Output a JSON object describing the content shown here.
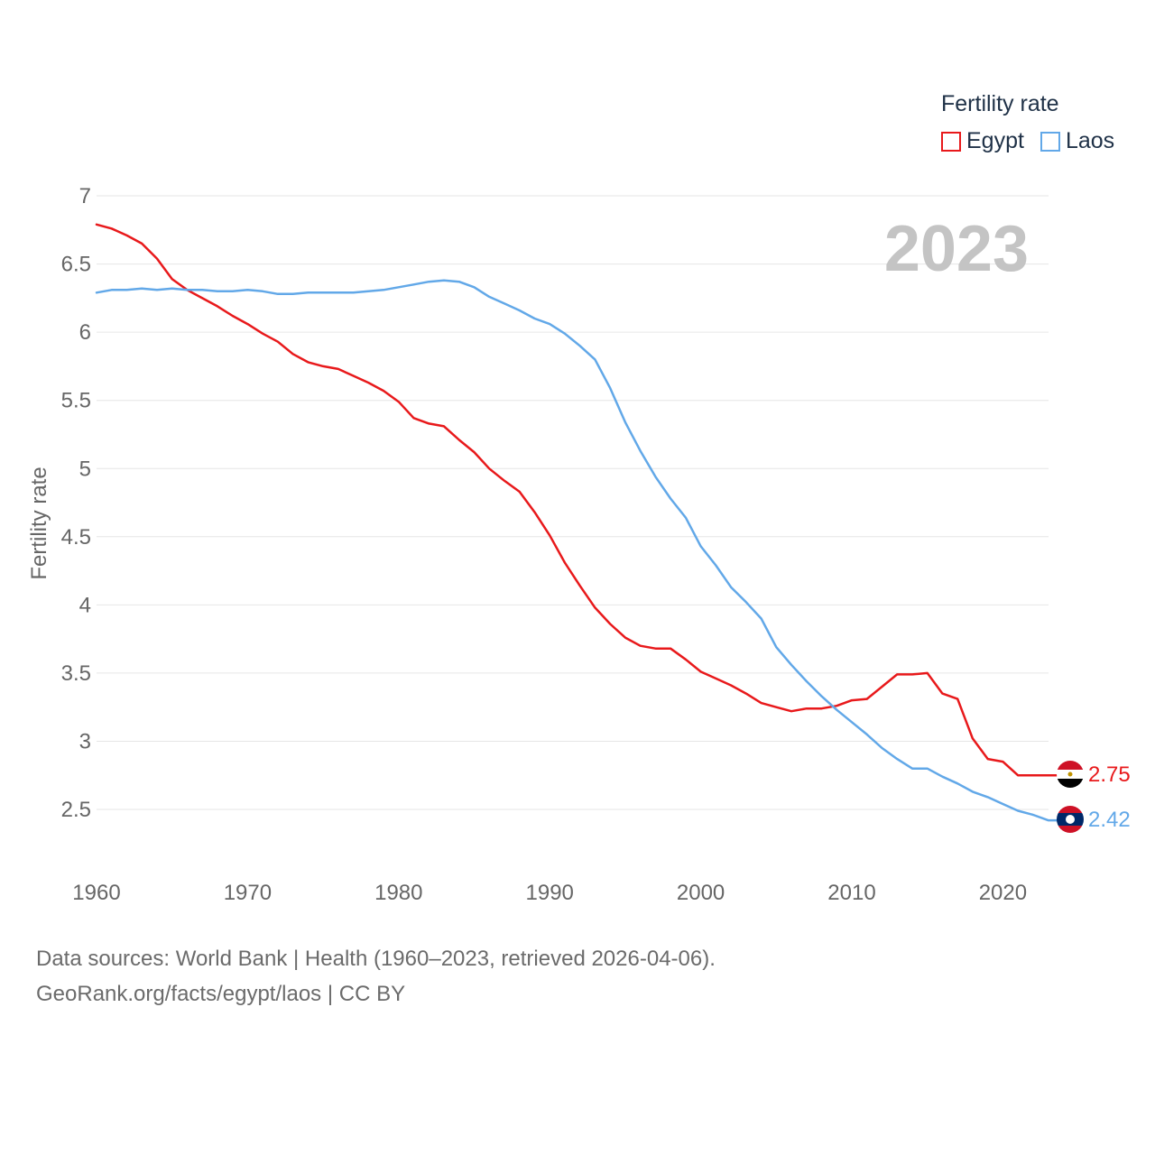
{
  "legend": {
    "title": "Fertility rate",
    "items": [
      {
        "name": "Egypt",
        "color": "#e8191b"
      },
      {
        "name": "Laos",
        "color": "#62a8e8"
      }
    ]
  },
  "source": {
    "line1": "Data sources: World Bank | Health (1960–2023, retrieved 2026-04-06).",
    "line2": "GeoRank.org/facts/egypt/laos | CC BY"
  },
  "chart_data": {
    "type": "line",
    "title": "",
    "year_label": "2023",
    "xlabel": "",
    "ylabel": "Fertility rate",
    "xlim": [
      1960,
      2023
    ],
    "ylim": [
      2.5,
      7
    ],
    "x_ticks": [
      1960,
      1970,
      1980,
      1990,
      2000,
      2010,
      2020
    ],
    "y_ticks": [
      2.5,
      3,
      3.5,
      4,
      4.5,
      5,
      5.5,
      6,
      6.5,
      7
    ],
    "y_tick_labels": [
      "2.5",
      "3",
      "3.5",
      "4",
      "4.5",
      "5",
      "5.5",
      "6",
      "6.5",
      "7"
    ],
    "grid": true,
    "legend_position": "top-right",
    "x": [
      1960,
      1961,
      1962,
      1963,
      1964,
      1965,
      1966,
      1967,
      1968,
      1969,
      1970,
      1971,
      1972,
      1973,
      1974,
      1975,
      1976,
      1977,
      1978,
      1979,
      1980,
      1981,
      1982,
      1983,
      1984,
      1985,
      1986,
      1987,
      1988,
      1989,
      1990,
      1991,
      1992,
      1993,
      1994,
      1995,
      1996,
      1997,
      1998,
      1999,
      2000,
      2001,
      2002,
      2003,
      2004,
      2005,
      2006,
      2007,
      2008,
      2009,
      2010,
      2011,
      2012,
      2013,
      2014,
      2015,
      2016,
      2017,
      2018,
      2019,
      2020,
      2021,
      2022,
      2023
    ],
    "series": [
      {
        "name": "Egypt",
        "color": "#e8191b",
        "end_label": "2.75",
        "values": [
          6.79,
          6.76,
          6.71,
          6.65,
          6.54,
          6.39,
          6.31,
          6.25,
          6.19,
          6.12,
          6.06,
          5.99,
          5.93,
          5.84,
          5.78,
          5.75,
          5.73,
          5.68,
          5.63,
          5.57,
          5.49,
          5.37,
          5.33,
          5.31,
          5.21,
          5.12,
          5.0,
          4.91,
          4.83,
          4.68,
          4.51,
          4.31,
          4.14,
          3.98,
          3.86,
          3.76,
          3.7,
          3.68,
          3.68,
          3.6,
          3.51,
          3.46,
          3.41,
          3.35,
          3.28,
          3.25,
          3.22,
          3.24,
          3.24,
          3.26,
          3.3,
          3.31,
          3.4,
          3.49,
          3.49,
          3.5,
          3.35,
          3.31,
          3.02,
          2.87,
          2.85,
          2.75,
          2.75,
          2.75
        ]
      },
      {
        "name": "Laos",
        "color": "#62a8e8",
        "end_label": "2.42",
        "values": [
          6.29,
          6.31,
          6.31,
          6.32,
          6.31,
          6.32,
          6.31,
          6.31,
          6.3,
          6.3,
          6.31,
          6.3,
          6.28,
          6.28,
          6.29,
          6.29,
          6.29,
          6.29,
          6.3,
          6.31,
          6.33,
          6.35,
          6.37,
          6.38,
          6.37,
          6.33,
          6.26,
          6.21,
          6.16,
          6.1,
          6.06,
          5.99,
          5.9,
          5.8,
          5.59,
          5.34,
          5.13,
          4.94,
          4.78,
          4.64,
          4.43,
          4.29,
          4.13,
          4.02,
          3.9,
          3.69,
          3.56,
          3.44,
          3.33,
          3.23,
          3.14,
          3.05,
          2.95,
          2.87,
          2.8,
          2.8,
          2.74,
          2.69,
          2.63,
          2.59,
          2.54,
          2.49,
          2.46,
          2.42
        ]
      }
    ]
  }
}
